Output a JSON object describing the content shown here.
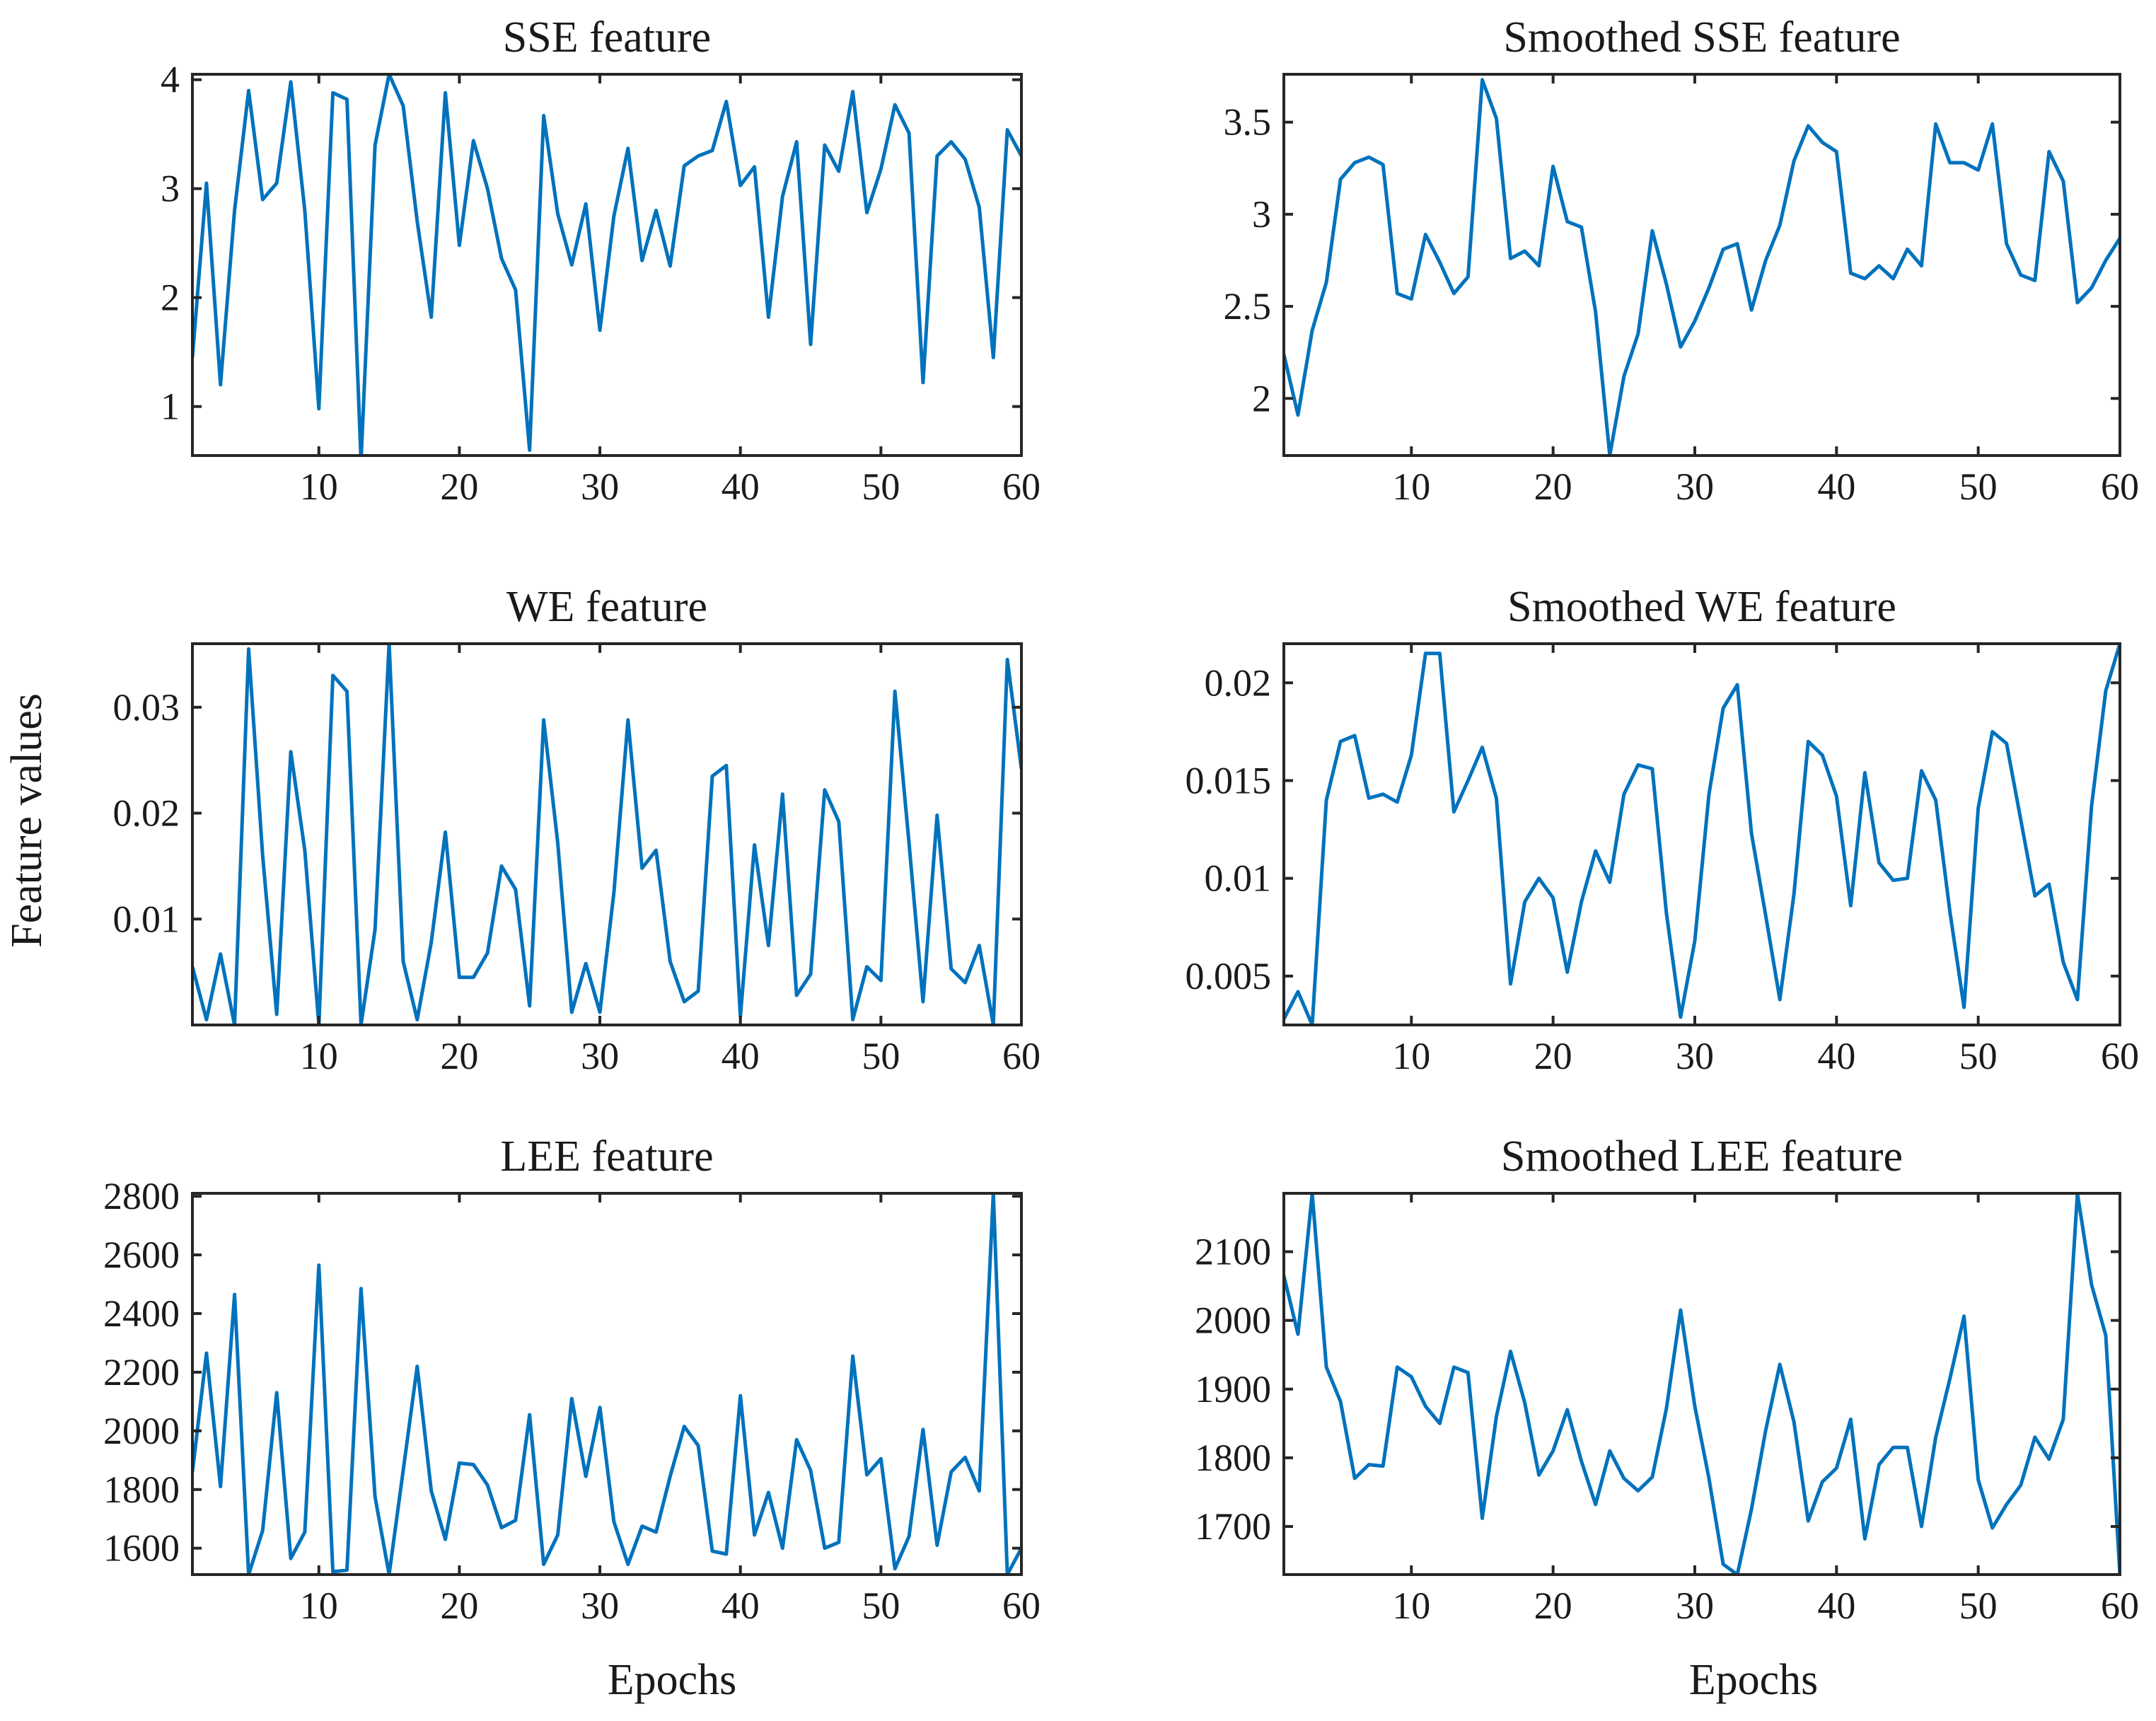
{
  "figure": {
    "shared_ylabel": "Feature values",
    "xlabel_left": "Epochs",
    "xlabel_right": "Epochs"
  },
  "colors": {
    "series": "#0072bd",
    "axes": "#262626",
    "background": "#ffffff"
  },
  "chart_data": [
    {
      "id": "sse",
      "type": "line",
      "title": "SSE feature",
      "xlabel": "",
      "ylabel": "",
      "xlim": [
        1,
        60
      ],
      "ylim": [
        0.55,
        4.05
      ],
      "xticks": [
        10,
        20,
        30,
        40,
        50,
        60
      ],
      "yticks": [
        1,
        2,
        3,
        4
      ],
      "ytick_labels": [
        "1",
        "2",
        "3",
        "4"
      ],
      "x_start": 1,
      "values": [
        1.45,
        3.05,
        1.2,
        2.8,
        3.9,
        2.9,
        3.05,
        3.98,
        2.8,
        0.98,
        3.88,
        3.82,
        0.5,
        3.4,
        4.05,
        3.76,
        2.7,
        1.82,
        3.88,
        2.48,
        3.44,
        3.0,
        2.36,
        2.07,
        0.6,
        3.67,
        2.77,
        2.3,
        2.86,
        1.7,
        2.75,
        3.37,
        2.34,
        2.8,
        2.29,
        3.21,
        3.3,
        3.35,
        3.8,
        3.03,
        3.2,
        1.82,
        2.93,
        3.43,
        1.57,
        3.4,
        3.16,
        3.89,
        2.78,
        3.18,
        3.77,
        3.51,
        1.22,
        3.3,
        3.43,
        3.27,
        2.83,
        1.45,
        3.54,
        3.3
      ]
    },
    {
      "id": "sse_smoothed",
      "type": "line",
      "title": "Smoothed SSE feature",
      "xlabel": "",
      "ylabel": "",
      "xlim": [
        1,
        60
      ],
      "ylim": [
        1.69,
        3.76
      ],
      "xticks": [
        10,
        20,
        30,
        40,
        50,
        60
      ],
      "yticks": [
        2,
        2.5,
        3,
        3.5
      ],
      "ytick_labels": [
        "2",
        "2.5",
        "3",
        "3.5"
      ],
      "x_start": 1,
      "values": [
        2.24,
        1.91,
        2.37,
        2.63,
        3.19,
        3.28,
        3.31,
        3.27,
        2.57,
        2.54,
        2.89,
        2.74,
        2.57,
        2.66,
        3.73,
        3.52,
        2.76,
        2.8,
        2.72,
        3.26,
        2.96,
        2.93,
        2.47,
        1.69,
        2.12,
        2.35,
        2.91,
        2.62,
        2.28,
        2.42,
        2.6,
        2.81,
        2.84,
        2.48,
        2.75,
        2.94,
        3.29,
        3.48,
        3.39,
        3.34,
        2.68,
        2.65,
        2.72,
        2.65,
        2.81,
        2.72,
        3.49,
        3.28,
        3.28,
        3.24,
        3.49,
        2.84,
        2.67,
        2.64,
        3.34,
        3.18,
        2.52,
        2.6,
        2.75,
        2.87
      ]
    },
    {
      "id": "we",
      "type": "line",
      "title": "WE feature",
      "xlabel": "",
      "ylabel": "",
      "xlim": [
        1,
        60
      ],
      "ylim": [
        0,
        0.036
      ],
      "xticks": [
        10,
        20,
        30,
        40,
        50,
        60
      ],
      "yticks": [
        0.01,
        0.02,
        0.03
      ],
      "ytick_labels": [
        "0.01",
        "0.02",
        "0.03"
      ],
      "x_start": 1,
      "values": [
        0.0055,
        0.0005,
        0.0067,
        0.0,
        0.0355,
        0.016,
        0.001,
        0.0258,
        0.0165,
        0.0,
        0.033,
        0.0315,
        0.0,
        0.009,
        0.036,
        0.006,
        0.0005,
        0.0078,
        0.0182,
        0.0045,
        0.0045,
        0.0068,
        0.015,
        0.0128,
        0.0018,
        0.0288,
        0.0172,
        0.0012,
        0.0058,
        0.0012,
        0.0125,
        0.0288,
        0.0148,
        0.0165,
        0.006,
        0.0022,
        0.0032,
        0.0235,
        0.0245,
        0.0008,
        0.017,
        0.0075,
        0.0218,
        0.0028,
        0.0048,
        0.0222,
        0.0192,
        0.0005,
        0.0055,
        0.0042,
        0.0315,
        0.0172,
        0.0022,
        0.0198,
        0.0053,
        0.004,
        0.0075,
        0.0,
        0.0345,
        0.0242
      ]
    },
    {
      "id": "we_smoothed",
      "type": "line",
      "title": "Smoothed WE feature",
      "xlabel": "",
      "ylabel": "",
      "xlim": [
        1,
        60
      ],
      "ylim": [
        0.0025,
        0.022
      ],
      "xticks": [
        10,
        20,
        30,
        40,
        50,
        60
      ],
      "yticks": [
        0.005,
        0.01,
        0.015,
        0.02
      ],
      "ytick_labels": [
        "0.005",
        "0.01",
        "0.015",
        "0.02"
      ],
      "x_start": 1,
      "values": [
        0.0028,
        0.0042,
        0.0025,
        0.014,
        0.017,
        0.0173,
        0.0141,
        0.0143,
        0.0139,
        0.0163,
        0.0215,
        0.0215,
        0.0134,
        0.015,
        0.0167,
        0.0141,
        0.0046,
        0.0088,
        0.01,
        0.009,
        0.0052,
        0.0088,
        0.0114,
        0.0098,
        0.0143,
        0.0158,
        0.0156,
        0.0082,
        0.0029,
        0.0068,
        0.0143,
        0.0187,
        0.0199,
        0.0123,
        0.0081,
        0.0038,
        0.0092,
        0.017,
        0.0163,
        0.0142,
        0.0086,
        0.0154,
        0.0108,
        0.0099,
        0.01,
        0.0155,
        0.014,
        0.0083,
        0.0034,
        0.0136,
        0.0175,
        0.0169,
        0.013,
        0.0091,
        0.0097,
        0.0057,
        0.0038,
        0.0137,
        0.0196,
        0.022
      ]
    },
    {
      "id": "lee",
      "type": "line",
      "title": "LEE feature",
      "xlabel": "Epochs",
      "ylabel": "",
      "xlim": [
        1,
        60
      ],
      "ylim": [
        1510,
        2810
      ],
      "xticks": [
        10,
        20,
        30,
        40,
        50,
        60
      ],
      "yticks": [
        1600,
        1800,
        2000,
        2200,
        2400,
        2600,
        2800
      ],
      "ytick_labels": [
        "1600",
        "1800",
        "2000",
        "2200",
        "2400",
        "2600",
        "2800"
      ],
      "x_start": 1,
      "values": [
        1860,
        2265,
        1810,
        2465,
        1510,
        1660,
        2130,
        1565,
        1655,
        2565,
        1520,
        1525,
        2485,
        1775,
        1510,
        1865,
        2220,
        1795,
        1630,
        1890,
        1885,
        1815,
        1670,
        1695,
        2055,
        1545,
        1645,
        2110,
        1845,
        2080,
        1690,
        1545,
        1675,
        1655,
        1845,
        2015,
        1950,
        1590,
        1580,
        2120,
        1645,
        1790,
        1600,
        1970,
        1865,
        1600,
        1620,
        2255,
        1850,
        1905,
        1530,
        1640,
        2005,
        1610,
        1860,
        1910,
        1795,
        2810,
        1510,
        1600
      ]
    },
    {
      "id": "lee_smoothed",
      "type": "line",
      "title": "Smoothed LEE feature",
      "xlabel": "Epochs",
      "ylabel": "",
      "xlim": [
        1,
        60
      ],
      "ylim": [
        1630,
        2185
      ],
      "xticks": [
        10,
        20,
        30,
        40,
        50,
        60
      ],
      "yticks": [
        1700,
        1800,
        1900,
        2000,
        2100
      ],
      "ytick_labels": [
        "1700",
        "1800",
        "1900",
        "2000",
        "2100"
      ],
      "x_start": 1,
      "values": [
        2065,
        1980,
        2185,
        1932,
        1882,
        1770,
        1790,
        1788,
        1932,
        1918,
        1875,
        1850,
        1932,
        1924,
        1712,
        1860,
        1955,
        1880,
        1775,
        1810,
        1870,
        1795,
        1732,
        1810,
        1770,
        1752,
        1772,
        1872,
        2015,
        1875,
        1770,
        1645,
        1630,
        1725,
        1840,
        1936,
        1852,
        1708,
        1765,
        1785,
        1856,
        1682,
        1790,
        1815,
        1815,
        1700,
        1830,
        1915,
        2006,
        1768,
        1698,
        1732,
        1760,
        1830,
        1798,
        1856,
        2185,
        2052,
        1978,
        1630
      ]
    }
  ]
}
